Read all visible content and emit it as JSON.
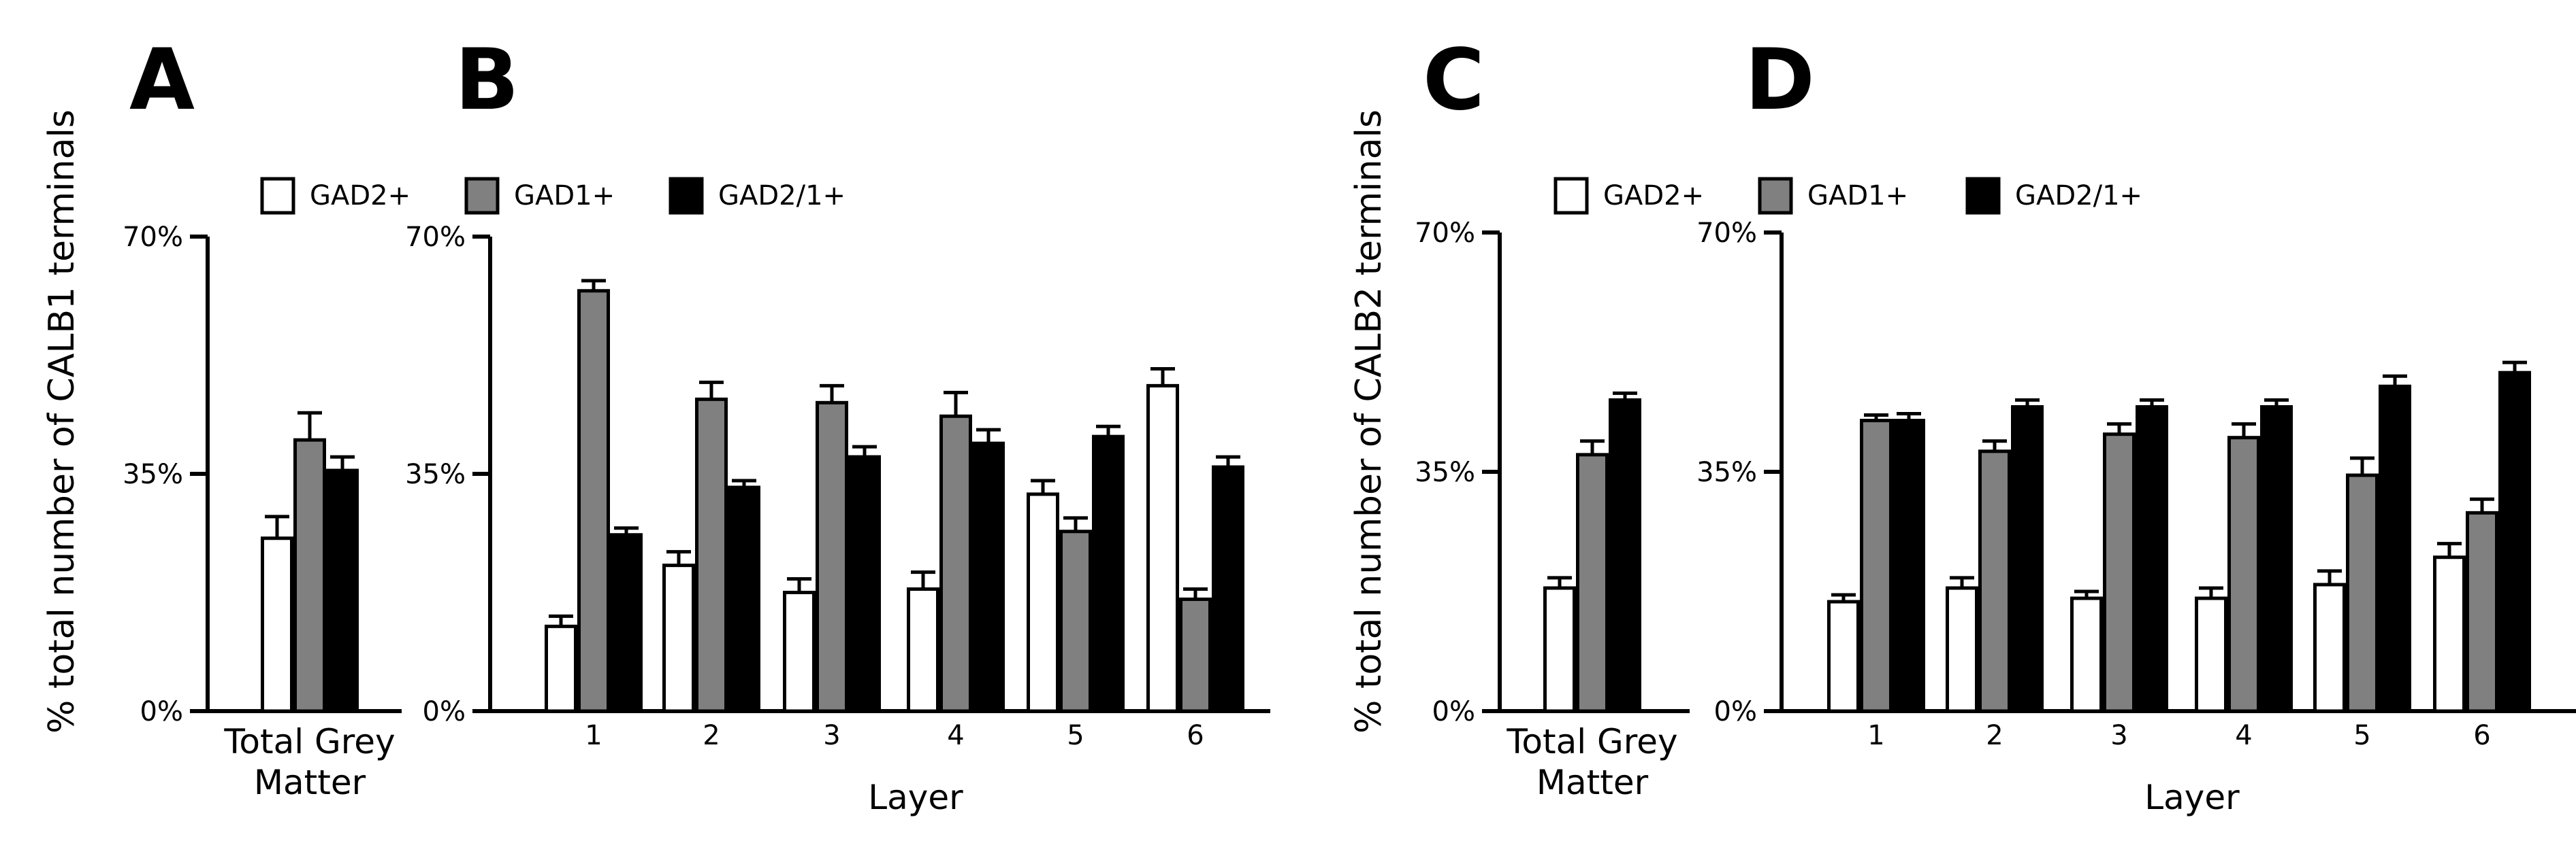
{
  "colors": {
    "GAD2+": "#ffffff",
    "GAD1+": "#808080",
    "GAD2/1+": "#000000"
  },
  "ylabels": {
    "calb1": "% total number of CALB1  terminals",
    "calb2": "% total number of CALB2  terminals"
  },
  "chart_data": [
    {
      "panel": "A",
      "type": "bar",
      "xlabel": "",
      "ylim": [
        0,
        70
      ],
      "yticks": [
        "0%",
        "35%",
        "70%"
      ],
      "categories": [
        "Total Grey\nMatter"
      ],
      "series": [
        {
          "name": "GAD2+",
          "values": [
            25.5
          ],
          "errors": [
            3.2
          ]
        },
        {
          "name": "GAD1+",
          "values": [
            40
          ],
          "errors": [
            4
          ]
        },
        {
          "name": "GAD2/1+",
          "values": [
            35.5
          ],
          "errors": [
            2
          ]
        }
      ]
    },
    {
      "panel": "B",
      "type": "bar",
      "xlabel": "Layer",
      "ylim": [
        0,
        70
      ],
      "yticks": [
        "0%",
        "35%",
        "70%"
      ],
      "categories": [
        "1",
        "2",
        "3",
        "4",
        "5",
        "6"
      ],
      "legend": [
        "GAD2+",
        "GAD1+",
        "GAD2/1+"
      ],
      "series": [
        {
          "name": "GAD2+",
          "values": [
            12.5,
            21.5,
            17.5,
            18,
            32,
            48
          ],
          "errors": [
            1.5,
            2,
            2,
            2.5,
            2,
            2.5
          ]
        },
        {
          "name": "GAD1+",
          "values": [
            62,
            46,
            45.5,
            43.5,
            26.5,
            16.5
          ],
          "errors": [
            1.5,
            2.5,
            2.5,
            3.5,
            2,
            1.5
          ]
        },
        {
          "name": "GAD2/1+",
          "values": [
            26,
            33,
            37.5,
            39.5,
            40.5,
            36
          ],
          "errors": [
            1,
            1,
            1.5,
            2,
            1.5,
            1.5
          ]
        }
      ]
    },
    {
      "panel": "C",
      "type": "bar",
      "xlabel": "",
      "ylim": [
        0,
        70
      ],
      "yticks": [
        "0%",
        "35%",
        "70%"
      ],
      "categories": [
        "Total Grey\nMatter"
      ],
      "series": [
        {
          "name": "GAD2+",
          "values": [
            18
          ],
          "errors": [
            1.5
          ]
        },
        {
          "name": "GAD1+",
          "values": [
            37.5
          ],
          "errors": [
            2
          ]
        },
        {
          "name": "GAD2/1+",
          "values": [
            45.5
          ],
          "errors": [
            1
          ]
        }
      ]
    },
    {
      "panel": "D",
      "type": "bar",
      "xlabel": "Layer",
      "ylim": [
        0,
        70
      ],
      "yticks": [
        "0%",
        "35%",
        "70%"
      ],
      "categories": [
        "1",
        "2",
        "3",
        "4",
        "5",
        "6"
      ],
      "legend": [
        "GAD2+",
        "GAD1+",
        "GAD2/1+"
      ],
      "series": [
        {
          "name": "GAD2+",
          "values": [
            16,
            18,
            16.5,
            16.5,
            18.5,
            22.5
          ],
          "errors": [
            1,
            1.5,
            1,
            1.5,
            2,
            2
          ]
        },
        {
          "name": "GAD1+",
          "values": [
            42.5,
            38,
            40.5,
            40,
            34.5,
            29
          ],
          "errors": [
            0.8,
            1.5,
            1.5,
            2,
            2.5,
            2
          ]
        },
        {
          "name": "GAD2/1+",
          "values": [
            42.5,
            44.5,
            44.5,
            44.5,
            47.5,
            49.5
          ],
          "errors": [
            1,
            1,
            1,
            1,
            1.5,
            1.5
          ]
        }
      ]
    }
  ]
}
